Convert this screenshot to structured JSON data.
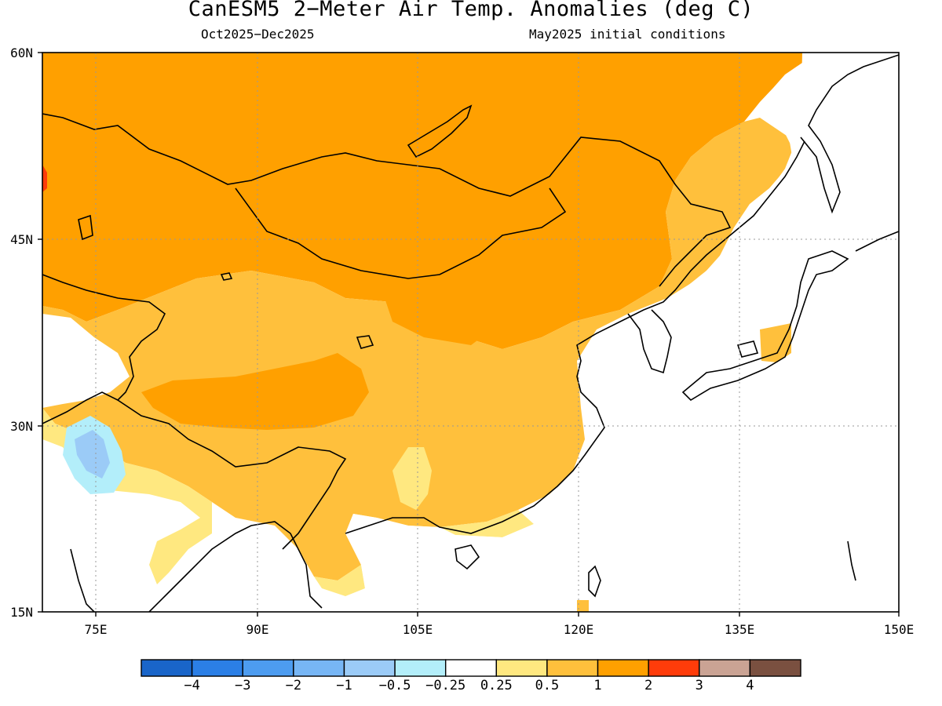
{
  "title": "CanESM5 2−Meter Air Temp. Anomalies (deg C)",
  "subtitle_left": "Oct2025−Dec2025",
  "subtitle_right": "May2025 initial conditions",
  "map": {
    "lon_range": [
      70,
      150
    ],
    "lat_range": [
      15,
      60
    ],
    "lat_ticks": [
      "60N",
      "45N",
      "30N",
      "15N"
    ],
    "lon_ticks": [
      "75E",
      "90E",
      "105E",
      "120E",
      "135E",
      "150E"
    ],
    "gridlines": "dotted"
  },
  "colorbar": {
    "colors": [
      "#1965c9",
      "#2b7fe6",
      "#4d9cf0",
      "#77b6f5",
      "#9bcbf7",
      "#b3eefa",
      "#ffffff",
      "#ffe880",
      "#ffc03c",
      "#ffa000",
      "#ff3c0a",
      "#caa394",
      "#7a5040"
    ],
    "labels": [
      "−4",
      "−3",
      "−2",
      "−1",
      "−0.5",
      "−0.25",
      "0.25",
      "0.5",
      "1",
      "2",
      "3",
      "4"
    ]
  }
}
